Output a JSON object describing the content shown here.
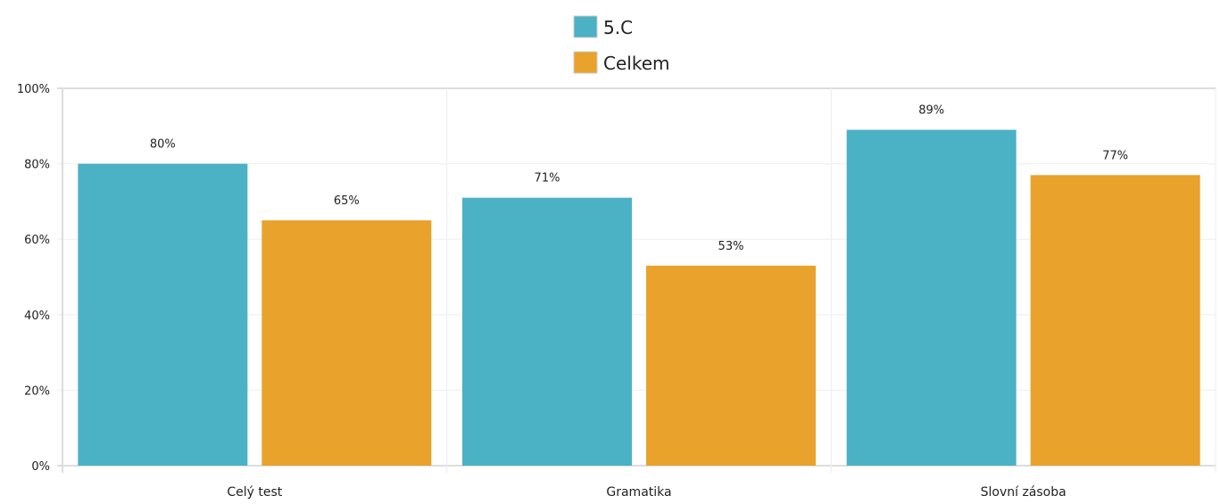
{
  "chart_data": {
    "type": "bar",
    "categories": [
      "Celý test",
      "Gramatika",
      "Slovní zásoba"
    ],
    "series": [
      {
        "name": "5.C",
        "values": [
          80,
          71,
          89
        ],
        "labels": [
          "80%",
          "71%",
          "89%"
        ],
        "color": "#4bb1c5"
      },
      {
        "name": "Celkem",
        "values": [
          65,
          53,
          77
        ],
        "labels": [
          "65%",
          "53%",
          "77%"
        ],
        "color": "#e9a22b"
      }
    ],
    "ylim": [
      0,
      100
    ],
    "yticks": [
      "0%",
      "20%",
      "40%",
      "60%",
      "80%",
      "100%"
    ],
    "grid": true,
    "legend": "top-center",
    "gridColor": "#eeeeee",
    "axisColor": "#dddddd"
  }
}
